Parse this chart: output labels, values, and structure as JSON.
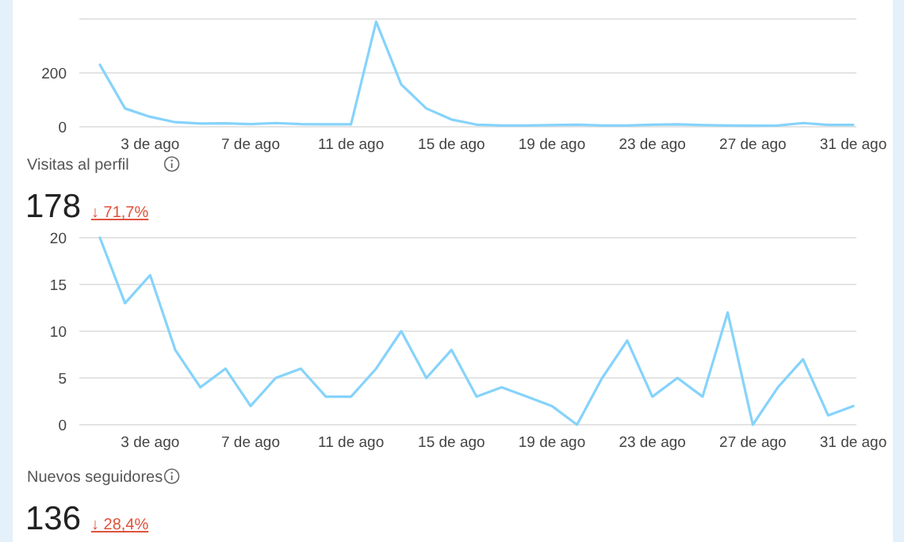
{
  "chart_data": [
    {
      "type": "line",
      "categories": [
        null,
        null,
        "3 de ago",
        null,
        null,
        null,
        "7 de ago",
        null,
        null,
        null,
        "11 de ago",
        null,
        null,
        null,
        "15 de ago",
        null,
        null,
        null,
        "19 de ago",
        null,
        null,
        null,
        "23 de ago",
        null,
        null,
        null,
        "27 de ago",
        null,
        null,
        null,
        "31 de ago"
      ],
      "series": [
        {
          "color": "#86d3fb",
          "values": [
            230,
            68,
            37,
            17,
            12,
            13,
            10,
            14,
            10,
            9,
            9,
            390,
            157,
            68,
            27,
            8,
            5,
            5,
            6,
            8,
            5,
            5,
            8,
            9,
            6,
            5,
            4,
            5,
            14,
            7,
            7
          ]
        }
      ],
      "ylim": [
        0,
        400
      ],
      "yticks": [
        0,
        200,
        {
          "value": 400,
          "label": null
        }
      ],
      "grid": "y"
    },
    {
      "type": "line",
      "title": "Visitas al perfil",
      "subtitle": "178",
      "annotations": [
        "↓ 71,7%"
      ],
      "categories": [
        null,
        null,
        "3 de ago",
        null,
        null,
        null,
        "7 de ago",
        null,
        null,
        null,
        "11 de ago",
        null,
        null,
        null,
        "15 de ago",
        null,
        null,
        null,
        "19 de ago",
        null,
        null,
        null,
        "23 de ago",
        null,
        null,
        null,
        "27 de ago",
        null,
        null,
        null,
        "31 de ago"
      ],
      "series": [
        {
          "color": "#86d3fb",
          "values": [
            20,
            13,
            16,
            8,
            4,
            6,
            2,
            5,
            6,
            3,
            3,
            6,
            10,
            5,
            8,
            3,
            4,
            3,
            2,
            0,
            5,
            9,
            3,
            5,
            3,
            12,
            0,
            4,
            7,
            1,
            2
          ]
        }
      ],
      "ylim": [
        0,
        20
      ],
      "yticks": [
        0,
        5,
        10,
        15,
        20
      ],
      "grid": "y"
    },
    {
      "type": "other",
      "title": "Nuevos seguidores",
      "subtitle": "136",
      "annotations": [
        "↓ 28,4%"
      ]
    }
  ]
}
